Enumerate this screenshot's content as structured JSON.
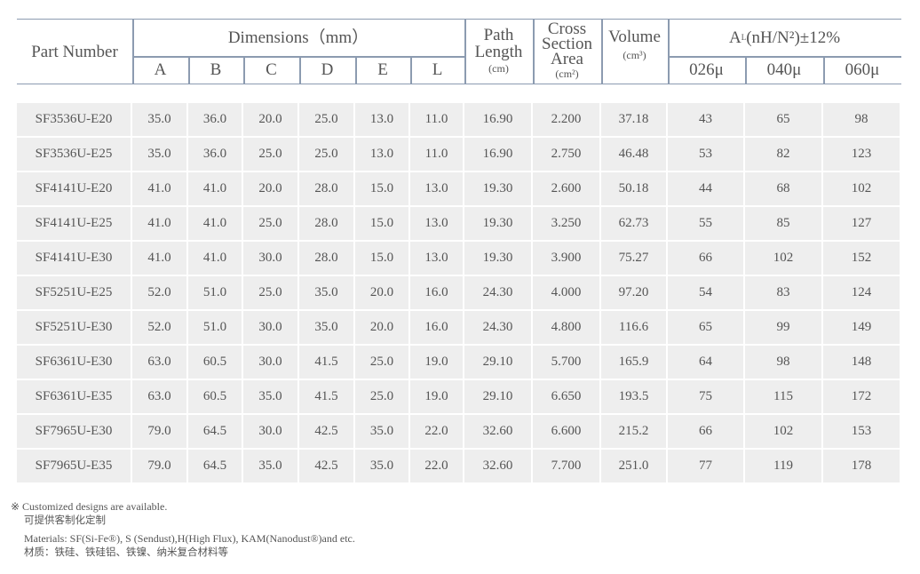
{
  "header": {
    "part_number": "Part Number",
    "dimensions": "Dimensions（mm）",
    "dim_cols": [
      "A",
      "B",
      "C",
      "D",
      "E",
      "L"
    ],
    "path_length": "Path Length",
    "path_unit": "(cm)",
    "cross_section": "Cross Section Area",
    "cross_unit": "(cm²)",
    "volume": "Volume",
    "volume_unit": "(cm³)",
    "al": "A",
    "al_sub": "L",
    "al_rest": "(nH/N²)±12%",
    "perm_cols": [
      "026μ",
      "040μ",
      "060μ"
    ]
  },
  "rows": [
    [
      "SF3536U-E20",
      "35.0",
      "36.0",
      "20.0",
      "25.0",
      "13.0",
      "11.0",
      "16.90",
      "2.200",
      "37.18",
      "43",
      "65",
      "98"
    ],
    [
      "SF3536U-E25",
      "35.0",
      "36.0",
      "25.0",
      "25.0",
      "13.0",
      "11.0",
      "16.90",
      "2.750",
      "46.48",
      "53",
      "82",
      "123"
    ],
    [
      "SF4141U-E20",
      "41.0",
      "41.0",
      "20.0",
      "28.0",
      "15.0",
      "13.0",
      "19.30",
      "2.600",
      "50.18",
      "44",
      "68",
      "102"
    ],
    [
      "SF4141U-E25",
      "41.0",
      "41.0",
      "25.0",
      "28.0",
      "15.0",
      "13.0",
      "19.30",
      "3.250",
      "62.73",
      "55",
      "85",
      "127"
    ],
    [
      "SF4141U-E30",
      "41.0",
      "41.0",
      "30.0",
      "28.0",
      "15.0",
      "13.0",
      "19.30",
      "3.900",
      "75.27",
      "66",
      "102",
      "152"
    ],
    [
      "SF5251U-E25",
      "52.0",
      "51.0",
      "25.0",
      "35.0",
      "20.0",
      "16.0",
      "24.30",
      "4.000",
      "97.20",
      "54",
      "83",
      "124"
    ],
    [
      "SF5251U-E30",
      "52.0",
      "51.0",
      "30.0",
      "35.0",
      "20.0",
      "16.0",
      "24.30",
      "4.800",
      "116.6",
      "65",
      "99",
      "149"
    ],
    [
      "SF6361U-E30",
      "63.0",
      "60.5",
      "30.0",
      "41.5",
      "25.0",
      "19.0",
      "29.10",
      "5.700",
      "165.9",
      "64",
      "98",
      "148"
    ],
    [
      "SF6361U-E35",
      "63.0",
      "60.5",
      "35.0",
      "41.5",
      "25.0",
      "19.0",
      "29.10",
      "6.650",
      "193.5",
      "75",
      "115",
      "172"
    ],
    [
      "SF7965U-E30",
      "79.0",
      "64.5",
      "30.0",
      "42.5",
      "35.0",
      "22.0",
      "32.60",
      "6.600",
      "215.2",
      "66",
      "102",
      "153"
    ],
    [
      "SF7965U-E35",
      "79.0",
      "64.5",
      "35.0",
      "42.5",
      "35.0",
      "22.0",
      "32.60",
      "7.700",
      "251.0",
      "77",
      "119",
      "178"
    ]
  ],
  "notes": {
    "custom_en": "※ Customized designs are available.",
    "custom_cn": "可提供客制化定制",
    "materials_en": "Materials: SF(Si-Fe®), S (Sendust),H(High Flux), KAM(Nanodust®)and etc.",
    "materials_cn": "材质：铁硅、铁硅铝、铁镍、纳米复合材料等"
  }
}
